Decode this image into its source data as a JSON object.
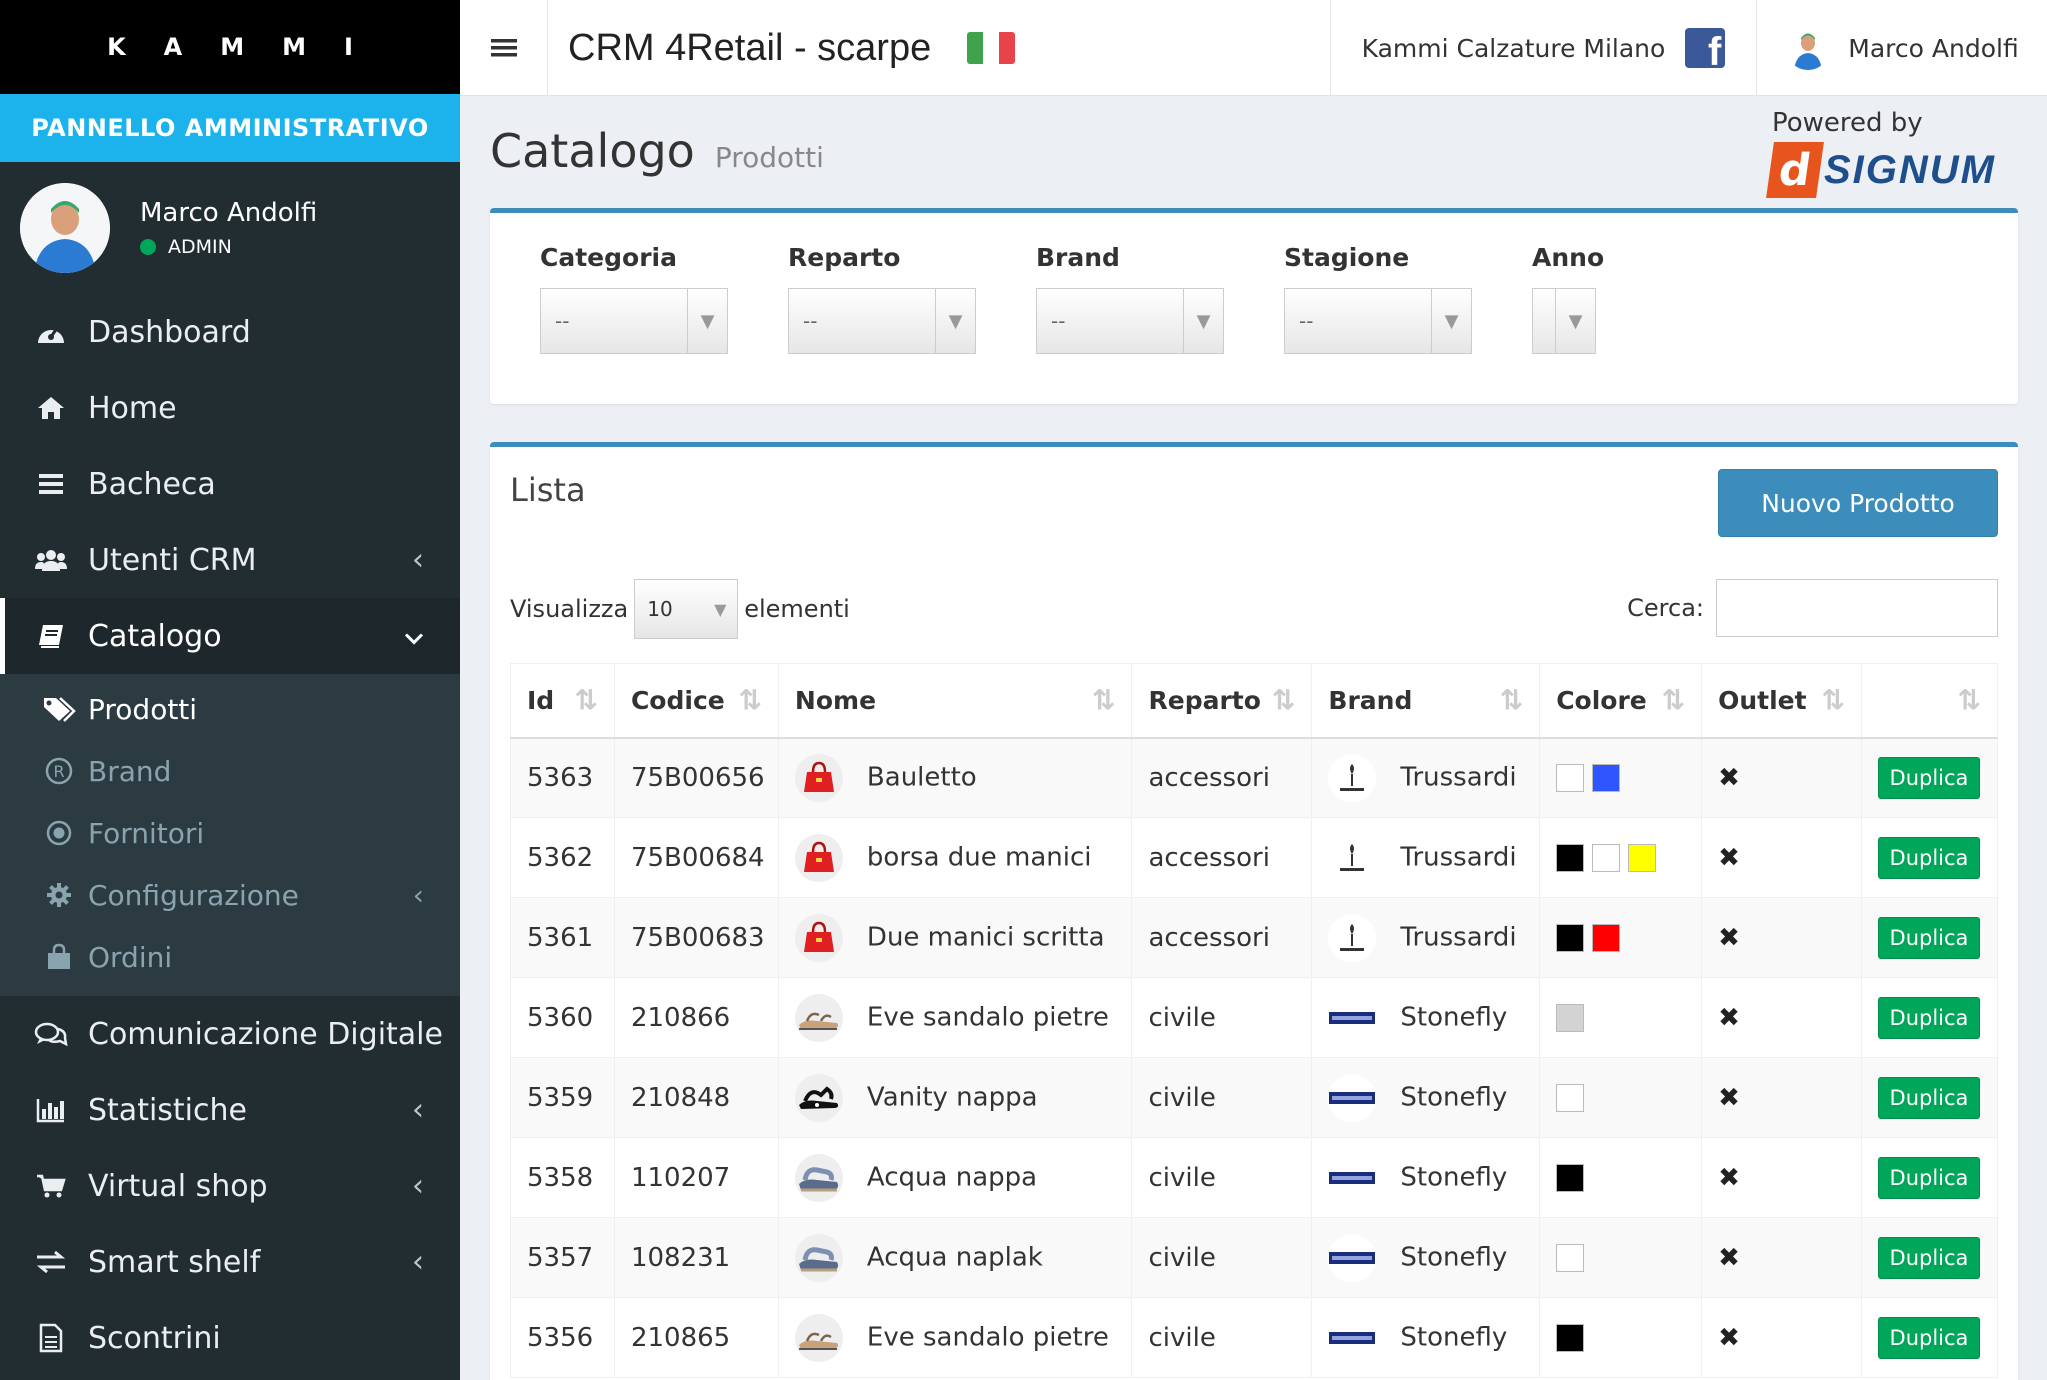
{
  "sidebar": {
    "logo": "KAMMI",
    "admin_banner": "PANNELLO AMMINISTRATIVO",
    "user": {
      "name": "Marco Andolfi",
      "role": "ADMIN"
    },
    "items": [
      {
        "label": "Dashboard",
        "icon": "dashboard-icon"
      },
      {
        "label": "Home",
        "icon": "home-icon"
      },
      {
        "label": "Bacheca",
        "icon": "bars-icon"
      },
      {
        "label": "Utenti CRM",
        "icon": "users-icon",
        "chevron": "‹"
      },
      {
        "label": "Catalogo",
        "icon": "book-icon",
        "chevron": "⌄"
      },
      {
        "label": "Comunicazione Digitale",
        "icon": "comments-icon"
      },
      {
        "label": "Statistiche",
        "icon": "bar-chart-icon",
        "chevron": "‹"
      },
      {
        "label": "Virtual shop",
        "icon": "cart-icon",
        "chevron": "‹"
      },
      {
        "label": "Smart shelf",
        "icon": "exchange-icon",
        "chevron": "‹"
      },
      {
        "label": "Scontrini",
        "icon": "receipt-icon"
      }
    ],
    "submenu": [
      {
        "label": "Prodotti",
        "icon": "tags-icon"
      },
      {
        "label": "Brand",
        "icon": "registered-icon"
      },
      {
        "label": "Fornitori",
        "icon": "circle-dot-icon"
      },
      {
        "label": "Configurazione",
        "icon": "cog-icon",
        "chevron": "‹"
      },
      {
        "label": "Ordini",
        "icon": "shopping-bag-icon"
      }
    ]
  },
  "header": {
    "title": "CRM 4Retail - scarpe",
    "store": "Kammi Calzature Milano",
    "user": "Marco Andolfi"
  },
  "page": {
    "title": "Catalogo",
    "subtitle": "Prodotti"
  },
  "powered": {
    "label": "Powered by",
    "logo_mark": "d",
    "logo_text": "SIGNUM"
  },
  "filters": [
    {
      "label": "Categoria",
      "value": "--"
    },
    {
      "label": "Reparto",
      "value": "--"
    },
    {
      "label": "Brand",
      "value": "--"
    },
    {
      "label": "Stagione",
      "value": "--"
    },
    {
      "label": "Anno",
      "value": ""
    }
  ],
  "list": {
    "title": "Lista",
    "new_button": "Nuovo Prodotto",
    "show_prefix": "Visualizza",
    "show_value": "10",
    "show_suffix": "elementi",
    "search_label": "Cerca:",
    "search_value": ""
  },
  "table": {
    "columns": [
      "Id",
      "Codice",
      "Nome",
      "Reparto",
      "Brand",
      "Colore",
      "Outlet",
      ""
    ],
    "rows": [
      {
        "id": "5363",
        "code": "75B00656",
        "name": "Bauletto",
        "reparto": "accessori",
        "brand": "Trussardi",
        "colors": [
          "#ffffff",
          "#2f55ff"
        ],
        "outlet": "✖",
        "action": "Duplica",
        "thumb": "red-bag"
      },
      {
        "id": "5362",
        "code": "75B00684",
        "name": "borsa due manici",
        "reparto": "accessori",
        "brand": "Trussardi",
        "colors": [
          "#000000",
          "#ffffff",
          "#ffff00"
        ],
        "outlet": "✖",
        "action": "Duplica",
        "thumb": "red-bag"
      },
      {
        "id": "5361",
        "code": "75B00683",
        "name": "Due manici scritta",
        "reparto": "accessori",
        "brand": "Trussardi",
        "colors": [
          "#000000",
          "#ff0000"
        ],
        "outlet": "✖",
        "action": "Duplica",
        "thumb": "red-bag"
      },
      {
        "id": "5360",
        "code": "210866",
        "name": "Eve sandalo pietre",
        "reparto": "civile",
        "brand": "Stonefly",
        "colors": [
          "#d3d3d3"
        ],
        "outlet": "✖",
        "action": "Duplica",
        "thumb": "sandal"
      },
      {
        "id": "5359",
        "code": "210848",
        "name": "Vanity nappa",
        "reparto": "civile",
        "brand": "Stonefly",
        "colors": [
          "#ffffff"
        ],
        "outlet": "✖",
        "action": "Duplica",
        "thumb": "black-sandal"
      },
      {
        "id": "5358",
        "code": "110207",
        "name": "Acqua nappa",
        "reparto": "civile",
        "brand": "Stonefly",
        "colors": [
          "#000000"
        ],
        "outlet": "✖",
        "action": "Duplica",
        "thumb": "blue-sandal"
      },
      {
        "id": "5357",
        "code": "108231",
        "name": "Acqua naplak",
        "reparto": "civile",
        "brand": "Stonefly",
        "colors": [
          "#ffffff"
        ],
        "outlet": "✖",
        "action": "Duplica",
        "thumb": "blue-sandal"
      },
      {
        "id": "5356",
        "code": "210865",
        "name": "Eve sandalo pietre",
        "reparto": "civile",
        "brand": "Stonefly",
        "colors": [
          "#000000"
        ],
        "outlet": "✖",
        "action": "Duplica",
        "thumb": "sandal"
      }
    ]
  },
  "colors": {
    "accent": "#3c8dbc",
    "banner": "#1cb3ec",
    "success": "#00a65a",
    "sidebar": "#222d32"
  }
}
